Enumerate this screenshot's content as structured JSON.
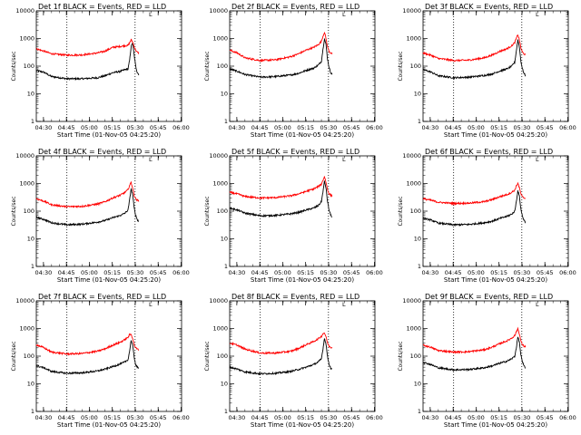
{
  "figure": {
    "background": "#ffffff",
    "axes_color": "#000000"
  },
  "chart_data": {
    "type": "line",
    "panel_count": 9,
    "layout": "3x3 grid",
    "shared": {
      "ylabel": "Counts/sec",
      "xlabel": "Start Time (01-Nov-05 04:25:20)",
      "yscale": "log",
      "ylim": [
        1,
        10000
      ],
      "yticks": [
        "1",
        "10",
        "100",
        "1000",
        "10000"
      ],
      "xlim_minutes": [
        0,
        95
      ],
      "xticks": [
        {
          "label": "04:30",
          "minute": 4.67
        },
        {
          "label": "04:45",
          "minute": 19.67
        },
        {
          "label": "05:00",
          "minute": 34.67
        },
        {
          "label": "05:15",
          "minute": 49.67
        },
        {
          "label": "05:30",
          "minute": 64.67
        },
        {
          "label": "05:45",
          "minute": 79.67
        },
        {
          "label": "06:00",
          "minute": 94.67
        }
      ],
      "series_colors": {
        "events": "#000000",
        "lld": "#ff0000"
      },
      "legend_glyph": "L"
    },
    "panels": [
      {
        "title": "Det 1f BLACK = Events, RED = LLD",
        "vlines": [
          20,
          64.6
        ],
        "series": [
          {
            "name": "Events",
            "color": "#000000",
            "x": [
              0,
              5,
              10,
              20,
              30,
              40,
              45,
              50,
              55,
              58,
              60,
              61,
              62,
              63,
              64,
              65,
              66,
              67
            ],
            "values": [
              70,
              60,
              42,
              35,
              35,
              38,
              45,
              58,
              65,
              75,
              80,
              160,
              500,
              700,
              250,
              100,
              60,
              50
            ]
          },
          {
            "name": "LLD",
            "color": "#ff0000",
            "x": [
              0,
              5,
              10,
              20,
              30,
              40,
              45,
              50,
              55,
              58,
              60,
              61,
              62,
              63,
              64,
              65,
              66,
              67
            ],
            "values": [
              420,
              350,
              280,
              250,
              255,
              300,
              350,
              480,
              520,
              550,
              560,
              700,
              900,
              750,
              500,
              380,
              320,
              300
            ]
          }
        ]
      },
      {
        "title": "Det 2f BLACK = Events, RED = LLD",
        "vlines": [
          20,
          64.6
        ],
        "series": [
          {
            "name": "Events",
            "color": "#000000",
            "x": [
              0,
              5,
              10,
              20,
              30,
              40,
              45,
              50,
              55,
              58,
              60,
              61,
              62,
              63,
              64,
              65,
              66,
              67
            ],
            "values": [
              80,
              65,
              50,
              40,
              42,
              48,
              55,
              70,
              85,
              110,
              150,
              400,
              1000,
              600,
              180,
              90,
              60,
              50
            ]
          },
          {
            "name": "LLD",
            "color": "#ff0000",
            "x": [
              0,
              5,
              10,
              20,
              30,
              40,
              45,
              50,
              55,
              58,
              60,
              61,
              62,
              63,
              64,
              65,
              66,
              67
            ],
            "values": [
              380,
              300,
              200,
              160,
              170,
              220,
              280,
              380,
              480,
              600,
              800,
              1200,
              1700,
              1000,
              500,
              350,
              300,
              280
            ]
          }
        ]
      },
      {
        "title": "Det 3f BLACK = Events, RED = LLD",
        "vlines": [
          20,
          64.6
        ],
        "series": [
          {
            "name": "Events",
            "color": "#000000",
            "x": [
              0,
              5,
              10,
              20,
              30,
              40,
              45,
              50,
              55,
              58,
              60,
              61,
              62,
              63,
              64,
              65,
              66,
              67
            ],
            "values": [
              75,
              62,
              45,
              38,
              40,
              46,
              52,
              66,
              80,
              100,
              140,
              350,
              900,
              500,
              150,
              80,
              55,
              45
            ]
          },
          {
            "name": "LLD",
            "color": "#ff0000",
            "x": [
              0,
              5,
              10,
              20,
              30,
              40,
              45,
              50,
              55,
              58,
              60,
              61,
              62,
              63,
              64,
              65,
              66,
              67
            ],
            "values": [
              300,
              250,
              190,
              160,
              165,
              200,
              250,
              340,
              430,
              550,
              720,
              1000,
              1400,
              900,
              450,
              320,
              280,
              260
            ]
          }
        ]
      },
      {
        "title": "Det 4f BLACK = Events, RED = LLD",
        "vlines": [
          20,
          64.6
        ],
        "series": [
          {
            "name": "Events",
            "color": "#000000",
            "x": [
              0,
              5,
              10,
              20,
              30,
              40,
              45,
              50,
              55,
              58,
              60,
              61,
              62,
              63,
              64,
              65,
              66,
              67
            ],
            "values": [
              60,
              50,
              38,
              32,
              34,
              40,
              46,
              58,
              70,
              85,
              110,
              250,
              650,
              400,
              130,
              70,
              50,
              42
            ]
          },
          {
            "name": "LLD",
            "color": "#ff0000",
            "x": [
              0,
              5,
              10,
              20,
              30,
              40,
              45,
              50,
              55,
              58,
              60,
              61,
              62,
              63,
              64,
              65,
              66,
              67
            ],
            "values": [
              280,
              230,
              170,
              145,
              150,
              180,
              220,
              300,
              380,
              480,
              600,
              850,
              1100,
              700,
              380,
              280,
              250,
              230
            ]
          }
        ]
      },
      {
        "title": "Det 5f BLACK = Events, RED = LLD",
        "vlines": [
          20,
          64.6
        ],
        "series": [
          {
            "name": "Events",
            "color": "#000000",
            "x": [
              0,
              5,
              10,
              20,
              30,
              40,
              45,
              50,
              55,
              58,
              60,
              61,
              62,
              63,
              64,
              65,
              66,
              67
            ],
            "values": [
              130,
              110,
              85,
              68,
              70,
              80,
              90,
              110,
              130,
              160,
              220,
              500,
              1200,
              700,
              220,
              110,
              75,
              60
            ]
          },
          {
            "name": "LLD",
            "color": "#ff0000",
            "x": [
              0,
              5,
              10,
              20,
              30,
              40,
              45,
              50,
              55,
              58,
              60,
              61,
              62,
              63,
              64,
              65,
              66,
              67
            ],
            "values": [
              480,
              420,
              340,
              300,
              310,
              360,
              420,
              520,
              640,
              780,
              950,
              1300,
              1800,
              1100,
              600,
              430,
              380,
              350
            ]
          }
        ]
      },
      {
        "title": "Det 6f BLACK = Events, RED = LLD",
        "vlines": [
          20,
          64.6
        ],
        "series": [
          {
            "name": "Events",
            "color": "#000000",
            "x": [
              0,
              5,
              10,
              20,
              30,
              40,
              45,
              50,
              55,
              58,
              60,
              61,
              62,
              63,
              64,
              65,
              66,
              67
            ],
            "values": [
              55,
              48,
              37,
              32,
              33,
              38,
              43,
              54,
              65,
              78,
              100,
              220,
              550,
              350,
              120,
              65,
              48,
              40
            ]
          },
          {
            "name": "LLD",
            "color": "#ff0000",
            "x": [
              0,
              5,
              10,
              20,
              30,
              40,
              45,
              50,
              55,
              58,
              60,
              61,
              62,
              63,
              64,
              65,
              66,
              67
            ],
            "values": [
              280,
              250,
              210,
              190,
              195,
              220,
              260,
              330,
              400,
              480,
              580,
              800,
              1050,
              700,
              420,
              330,
              300,
              290
            ]
          }
        ]
      },
      {
        "title": "Det 7f BLACK = Events, RED = LLD",
        "vlines": [
          20,
          64.6
        ],
        "series": [
          {
            "name": "Events",
            "color": "#000000",
            "x": [
              0,
              5,
              10,
              20,
              30,
              40,
              45,
              50,
              55,
              58,
              60,
              61,
              62,
              63,
              64,
              65,
              66,
              67
            ],
            "values": [
              45,
              38,
              28,
              24,
              25,
              29,
              34,
              42,
              52,
              62,
              75,
              150,
              380,
              250,
              90,
              50,
              40,
              35
            ]
          },
          {
            "name": "LLD",
            "color": "#ff0000",
            "x": [
              0,
              5,
              10,
              20,
              30,
              40,
              45,
              50,
              55,
              58,
              60,
              61,
              62,
              63,
              64,
              65,
              66,
              67
            ],
            "values": [
              260,
              200,
              140,
              120,
              125,
              150,
              185,
              250,
              320,
              400,
              480,
              600,
              620,
              450,
              260,
              200,
              180,
              170
            ]
          }
        ]
      },
      {
        "title": "Det 8f BLACK = Events, RED = LLD",
        "vlines": [
          20,
          64.6
        ],
        "series": [
          {
            "name": "Events",
            "color": "#000000",
            "x": [
              0,
              5,
              10,
              20,
              30,
              40,
              45,
              50,
              55,
              58,
              60,
              61,
              62,
              63,
              64,
              65,
              66,
              67
            ],
            "values": [
              40,
              34,
              27,
              23,
              24,
              28,
              33,
              40,
              50,
              62,
              80,
              180,
              450,
              280,
              95,
              52,
              38,
              32
            ]
          },
          {
            "name": "LLD",
            "color": "#ff0000",
            "x": [
              0,
              5,
              10,
              20,
              30,
              40,
              45,
              50,
              55,
              58,
              60,
              61,
              62,
              63,
              64,
              65,
              66,
              67
            ],
            "values": [
              300,
              250,
              180,
              130,
              130,
              150,
              190,
              260,
              340,
              430,
              520,
              650,
              700,
              500,
              300,
              230,
              210,
              200
            ]
          }
        ]
      },
      {
        "title": "Det 9f BLACK = Events, RED = LLD",
        "vlines": [
          20,
          64.6
        ],
        "series": [
          {
            "name": "Events",
            "color": "#000000",
            "x": [
              0,
              5,
              10,
              20,
              30,
              40,
              45,
              50,
              55,
              58,
              60,
              61,
              62,
              63,
              64,
              65,
              66,
              67
            ],
            "values": [
              60,
              50,
              38,
              32,
              33,
              38,
              44,
              55,
              66,
              80,
              100,
              200,
              500,
              320,
              110,
              60,
              45,
              38
            ]
          },
          {
            "name": "LLD",
            "color": "#ff0000",
            "x": [
              0,
              5,
              10,
              20,
              30,
              40,
              45,
              50,
              55,
              58,
              60,
              61,
              62,
              63,
              64,
              65,
              66,
              67
            ],
            "values": [
              250,
              210,
              160,
              140,
              145,
              170,
              210,
              280,
              360,
              450,
              560,
              750,
              1000,
              650,
              350,
              260,
              230,
              220
            ]
          }
        ]
      }
    ]
  }
}
